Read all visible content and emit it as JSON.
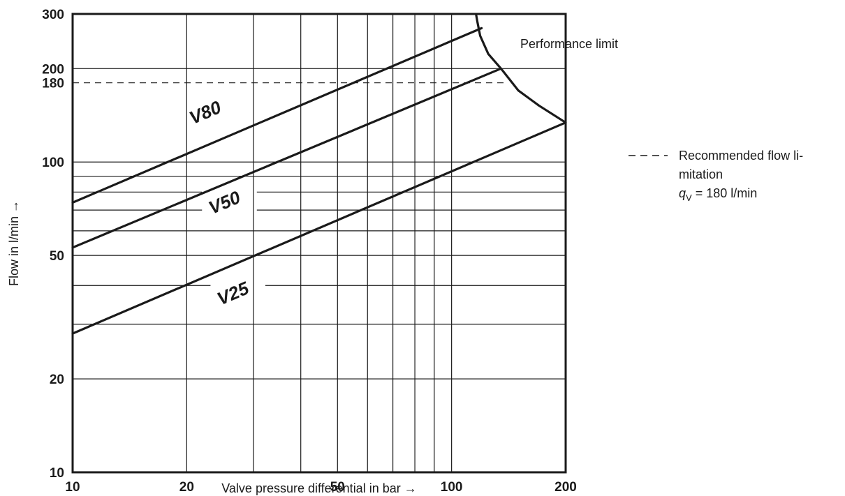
{
  "chart_data": {
    "type": "line",
    "x_scale": "log",
    "y_scale": "log",
    "xlabel": "Valve pressure differential in bar →",
    "ylabel": "Flow in l/min →",
    "xlim": [
      10,
      200
    ],
    "ylim": [
      10,
      300
    ],
    "x_ticks": [
      "10",
      "20",
      "50",
      "100",
      "200"
    ],
    "y_ticks": [
      "10",
      "20",
      "50",
      "100",
      "180",
      "200",
      "300"
    ],
    "grid": true,
    "x_grid": [
      20,
      30,
      40,
      50,
      60,
      70,
      80,
      90,
      100
    ],
    "y_grid": [
      20,
      30,
      40,
      50,
      60,
      70,
      80,
      90,
      100,
      200
    ],
    "series": [
      {
        "name": "V80",
        "x": [
          10,
          120
        ],
        "y": [
          74,
          270
        ]
      },
      {
        "name": "V50",
        "x": [
          10,
          135
        ],
        "y": [
          53,
          200
        ]
      },
      {
        "name": "V25",
        "x": [
          10,
          200
        ],
        "y": [
          28,
          134
        ]
      }
    ],
    "performance_limit": {
      "label": "Performance limit",
      "x": [
        116,
        117,
        119,
        125,
        135,
        150,
        170,
        200
      ],
      "y": [
        300,
        283,
        255,
        223,
        200,
        170,
        152,
        134
      ]
    },
    "recommended_limit": {
      "y": 180,
      "x": [
        10,
        140
      ],
      "legend_text_line1": "Recommended flow li-",
      "legend_text_line2": "mitation",
      "legend_text_line3_prefix": "q",
      "legend_text_line3_sub": "V",
      "legend_text_line3_suffix": " = 180 l/min"
    }
  }
}
